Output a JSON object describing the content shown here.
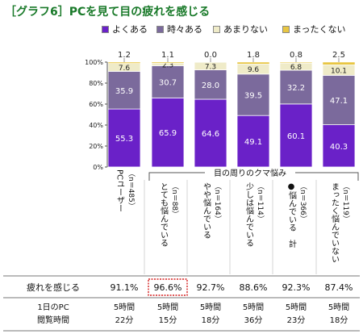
{
  "title": "［グラフ6］PCを見て目の疲れを感じる",
  "chart_data": {
    "type": "bar",
    "stacked": true,
    "percent_stacked": true,
    "y_ticks": [
      "0%",
      "20%",
      "40%",
      "60%",
      "80%",
      "100%"
    ],
    "ylim": [
      0,
      100
    ],
    "series": [
      {
        "name": "よくある",
        "color": "#6a21c8",
        "values": [
          55.3,
          65.9,
          64.6,
          49.1,
          60.1,
          40.3
        ]
      },
      {
        "name": "時々ある",
        "color": "#7b6a9c",
        "values": [
          35.9,
          30.7,
          28.0,
          39.5,
          32.2,
          47.1
        ]
      },
      {
        "name": "あまりない",
        "color": "#efebc8",
        "values": [
          7.6,
          2.3,
          7.3,
          9.6,
          6.8,
          10.1
        ]
      },
      {
        "name": "まったくない",
        "color": "#e8c642",
        "values": [
          1.2,
          1.1,
          0.0,
          1.8,
          0.8,
          2.5
        ]
      }
    ],
    "top_labels": [
      "1.2",
      "1.1",
      "0.0",
      "1.8",
      "0.8",
      "2.5"
    ],
    "categories": [
      {
        "col1": "PCユーザー",
        "col2": "（n＝485）"
      },
      {
        "col1": "とても悩んでいる",
        "col2": "（n＝88）"
      },
      {
        "col1": "やや悩んでいる",
        "col2": "（n＝164）"
      },
      {
        "col1": "少しは悩んでいる",
        "col2": "（n＝114）"
      },
      {
        "col1": "●悩んでいる　計",
        "col2": "（n＝366）"
      },
      {
        "col1": "まったく悩んでいない",
        "col2": "（n＝119）"
      }
    ],
    "group_label": "目の周りのクマ悩み"
  },
  "table": {
    "rows": [
      {
        "header": "疲れを感じる",
        "cells": [
          "91.1%",
          "96.6%",
          "92.7%",
          "88.6%",
          "92.3%",
          "87.4%"
        ]
      },
      {
        "header1": "1日のPC",
        "header2": "閲覧時間",
        "cells": [
          [
            "5時間",
            "22分"
          ],
          [
            "5時間",
            "15分"
          ],
          [
            "5時間",
            "18分"
          ],
          [
            "5時間",
            "36分"
          ],
          [
            "5時間",
            "23分"
          ],
          [
            "5時間",
            "18分"
          ]
        ]
      }
    ],
    "highlight_color": "#d42020"
  }
}
